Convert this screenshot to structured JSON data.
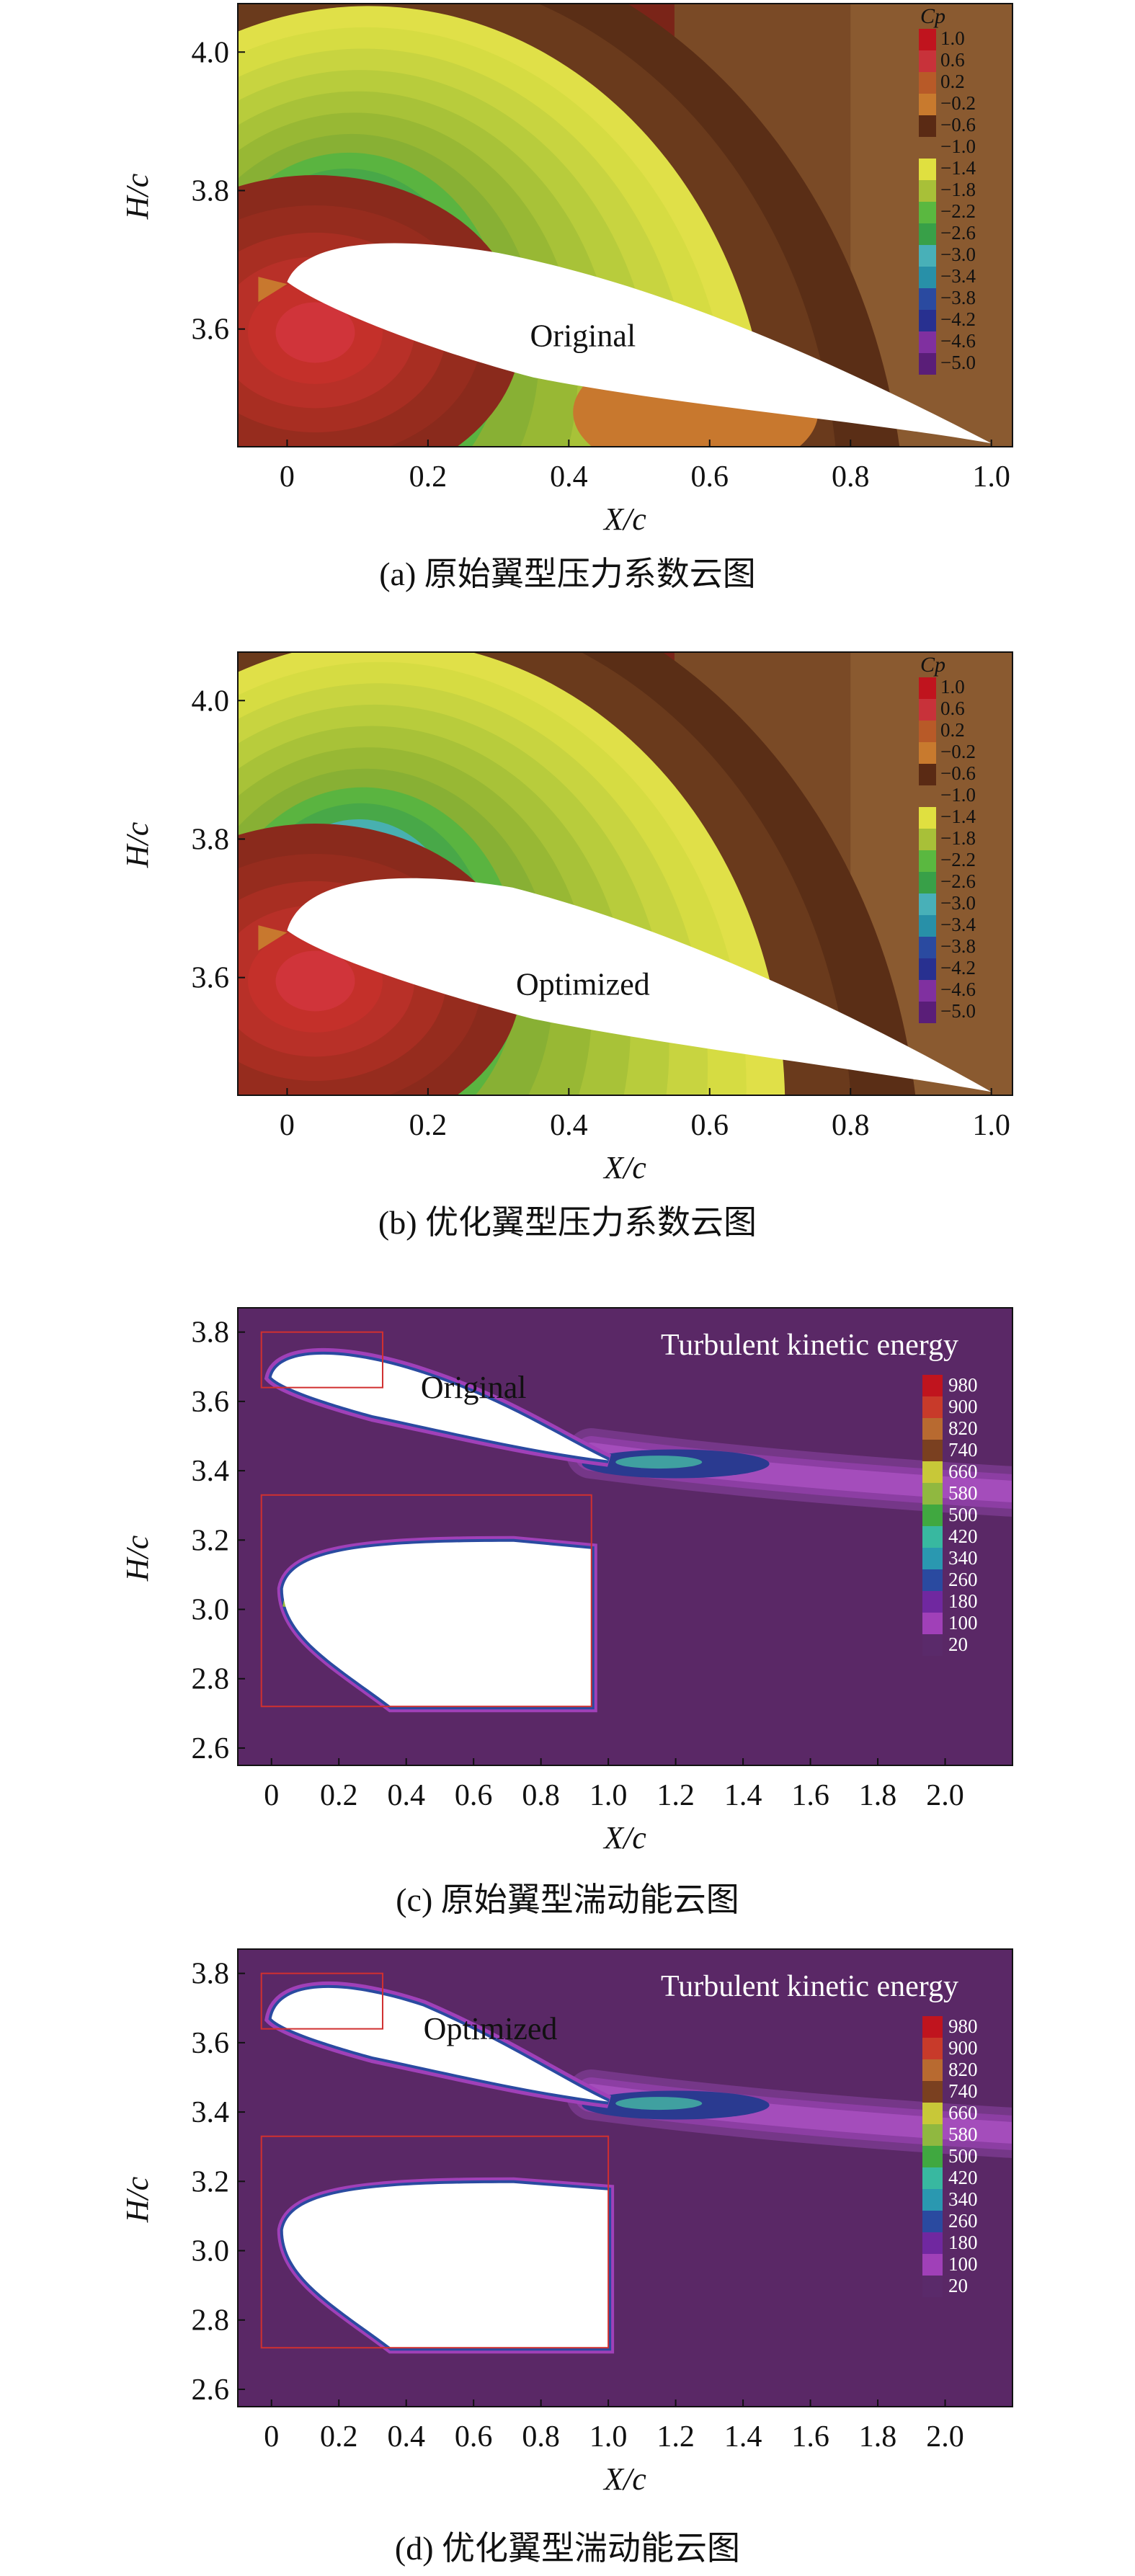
{
  "chart_data": [
    {
      "type": "heatmap",
      "panel_id": "a",
      "caption": "(a) 原始翼型压力系数云图",
      "xlabel": "X/c",
      "ylabel": "H/c",
      "xticks": [
        0,
        0.2,
        0.4,
        0.6,
        0.8,
        1.0
      ],
      "xtick_labels": [
        "0",
        "0.2",
        "0.4",
        "0.6",
        "0.8",
        "1.0"
      ],
      "yticks": [
        3.6,
        3.8,
        4.0
      ],
      "ytick_labels": [
        "3.6",
        "3.8",
        "4.0"
      ],
      "xlim": [
        -0.07,
        1.03
      ],
      "ylim": [
        3.43,
        4.07
      ],
      "annotation": "Original",
      "legend_title": "Cp",
      "legend_labels": [
        "1.0",
        "0.6",
        "0.2",
        "−0.2",
        "−0.6",
        "−1.0",
        "−1.4",
        "−1.8",
        "−2.2",
        "−2.6",
        "−3.0",
        "−3.4",
        "−3.8",
        "−4.2",
        "−4.6",
        "−5.0"
      ],
      "legend_placement": "top-right"
    },
    {
      "type": "heatmap",
      "panel_id": "b",
      "caption": "(b) 优化翼型压力系数云图",
      "xlabel": "X/c",
      "ylabel": "H/c",
      "xticks": [
        0,
        0.2,
        0.4,
        0.6,
        0.8,
        1.0
      ],
      "xtick_labels": [
        "0",
        "0.2",
        "0.4",
        "0.6",
        "0.8",
        "1.0"
      ],
      "yticks": [
        3.6,
        3.8,
        4.0
      ],
      "ytick_labels": [
        "3.6",
        "3.8",
        "4.0"
      ],
      "xlim": [
        -0.07,
        1.03
      ],
      "ylim": [
        3.43,
        4.07
      ],
      "annotation": "Optimized",
      "legend_title": "Cp",
      "legend_labels": [
        "1.0",
        "0.6",
        "0.2",
        "−0.2",
        "−0.6",
        "−1.0",
        "−1.4",
        "−1.8",
        "−2.2",
        "−2.6",
        "−3.0",
        "−3.4",
        "−3.8",
        "−4.2",
        "−4.6",
        "−5.0"
      ],
      "legend_placement": "top-right"
    },
    {
      "type": "heatmap",
      "panel_id": "c",
      "caption": "(c) 原始翼型湍动能云图",
      "xlabel": "X/c",
      "ylabel": "H/c",
      "xticks": [
        0,
        0.2,
        0.4,
        0.6,
        0.8,
        1.0,
        1.2,
        1.4,
        1.6,
        1.8,
        2.0
      ],
      "xtick_labels": [
        "0",
        "0.2",
        "0.4",
        "0.6",
        "0.8",
        "1.0",
        "1.2",
        "1.4",
        "1.6",
        "1.8",
        "2.0"
      ],
      "yticks": [
        2.6,
        2.8,
        3.0,
        3.2,
        3.4,
        3.6,
        3.8
      ],
      "ytick_labels": [
        "2.6",
        "2.8",
        "3.0",
        "3.2",
        "3.4",
        "3.6",
        "3.8"
      ],
      "xlim": [
        -0.1,
        2.2
      ],
      "ylim": [
        2.55,
        3.87
      ],
      "title": "Turbulent kinetic energy",
      "annotation": "Original",
      "legend_labels": [
        "980",
        "900",
        "820",
        "740",
        "660",
        "580",
        "500",
        "420",
        "340",
        "260",
        "180",
        "100",
        "20"
      ],
      "legend_placement": "right"
    },
    {
      "type": "heatmap",
      "panel_id": "d",
      "caption": "(d) 优化翼型湍动能云图",
      "xlabel": "X/c",
      "ylabel": "H/c",
      "xticks": [
        0,
        0.2,
        0.4,
        0.6,
        0.8,
        1.0,
        1.2,
        1.4,
        1.6,
        1.8,
        2.0
      ],
      "xtick_labels": [
        "0",
        "0.2",
        "0.4",
        "0.6",
        "0.8",
        "1.0",
        "1.2",
        "1.4",
        "1.6",
        "1.8",
        "2.0"
      ],
      "yticks": [
        2.6,
        2.8,
        3.0,
        3.2,
        3.4,
        3.6,
        3.8
      ],
      "ytick_labels": [
        "2.6",
        "2.8",
        "3.0",
        "3.2",
        "3.4",
        "3.6",
        "3.8"
      ],
      "xlim": [
        -0.1,
        2.2
      ],
      "ylim": [
        2.55,
        3.87
      ],
      "title": "Turbulent kinetic energy",
      "annotation": "Optimized",
      "legend_labels": [
        "980",
        "900",
        "820",
        "740",
        "660",
        "580",
        "500",
        "420",
        "340",
        "260",
        "180",
        "100",
        "20"
      ],
      "legend_placement": "right"
    }
  ],
  "colors": {
    "cp_legend": [
      "#c0141e",
      "#c8323a",
      "#b85a28",
      "#c87a2e",
      "#5a2a14",
      "#8a5a30",
      "#e0e040",
      "#a8c038",
      "#5ab840",
      "#38a048",
      "#48b0b8",
      "#2890a8",
      "#2a4aa0",
      "#283090",
      "#8030a0",
      "#5a1e78"
    ],
    "tke_legend": [
      "#c0141e",
      "#c83a2a",
      "#b86a30",
      "#7a4020",
      "#c8c838",
      "#90b840",
      "#40a840",
      "#38b8a0",
      "#2a98b0",
      "#2a4aa0",
      "#7028a0",
      "#a040b8",
      "#5a2a6a"
    ],
    "tke_background": "#5a2866"
  }
}
